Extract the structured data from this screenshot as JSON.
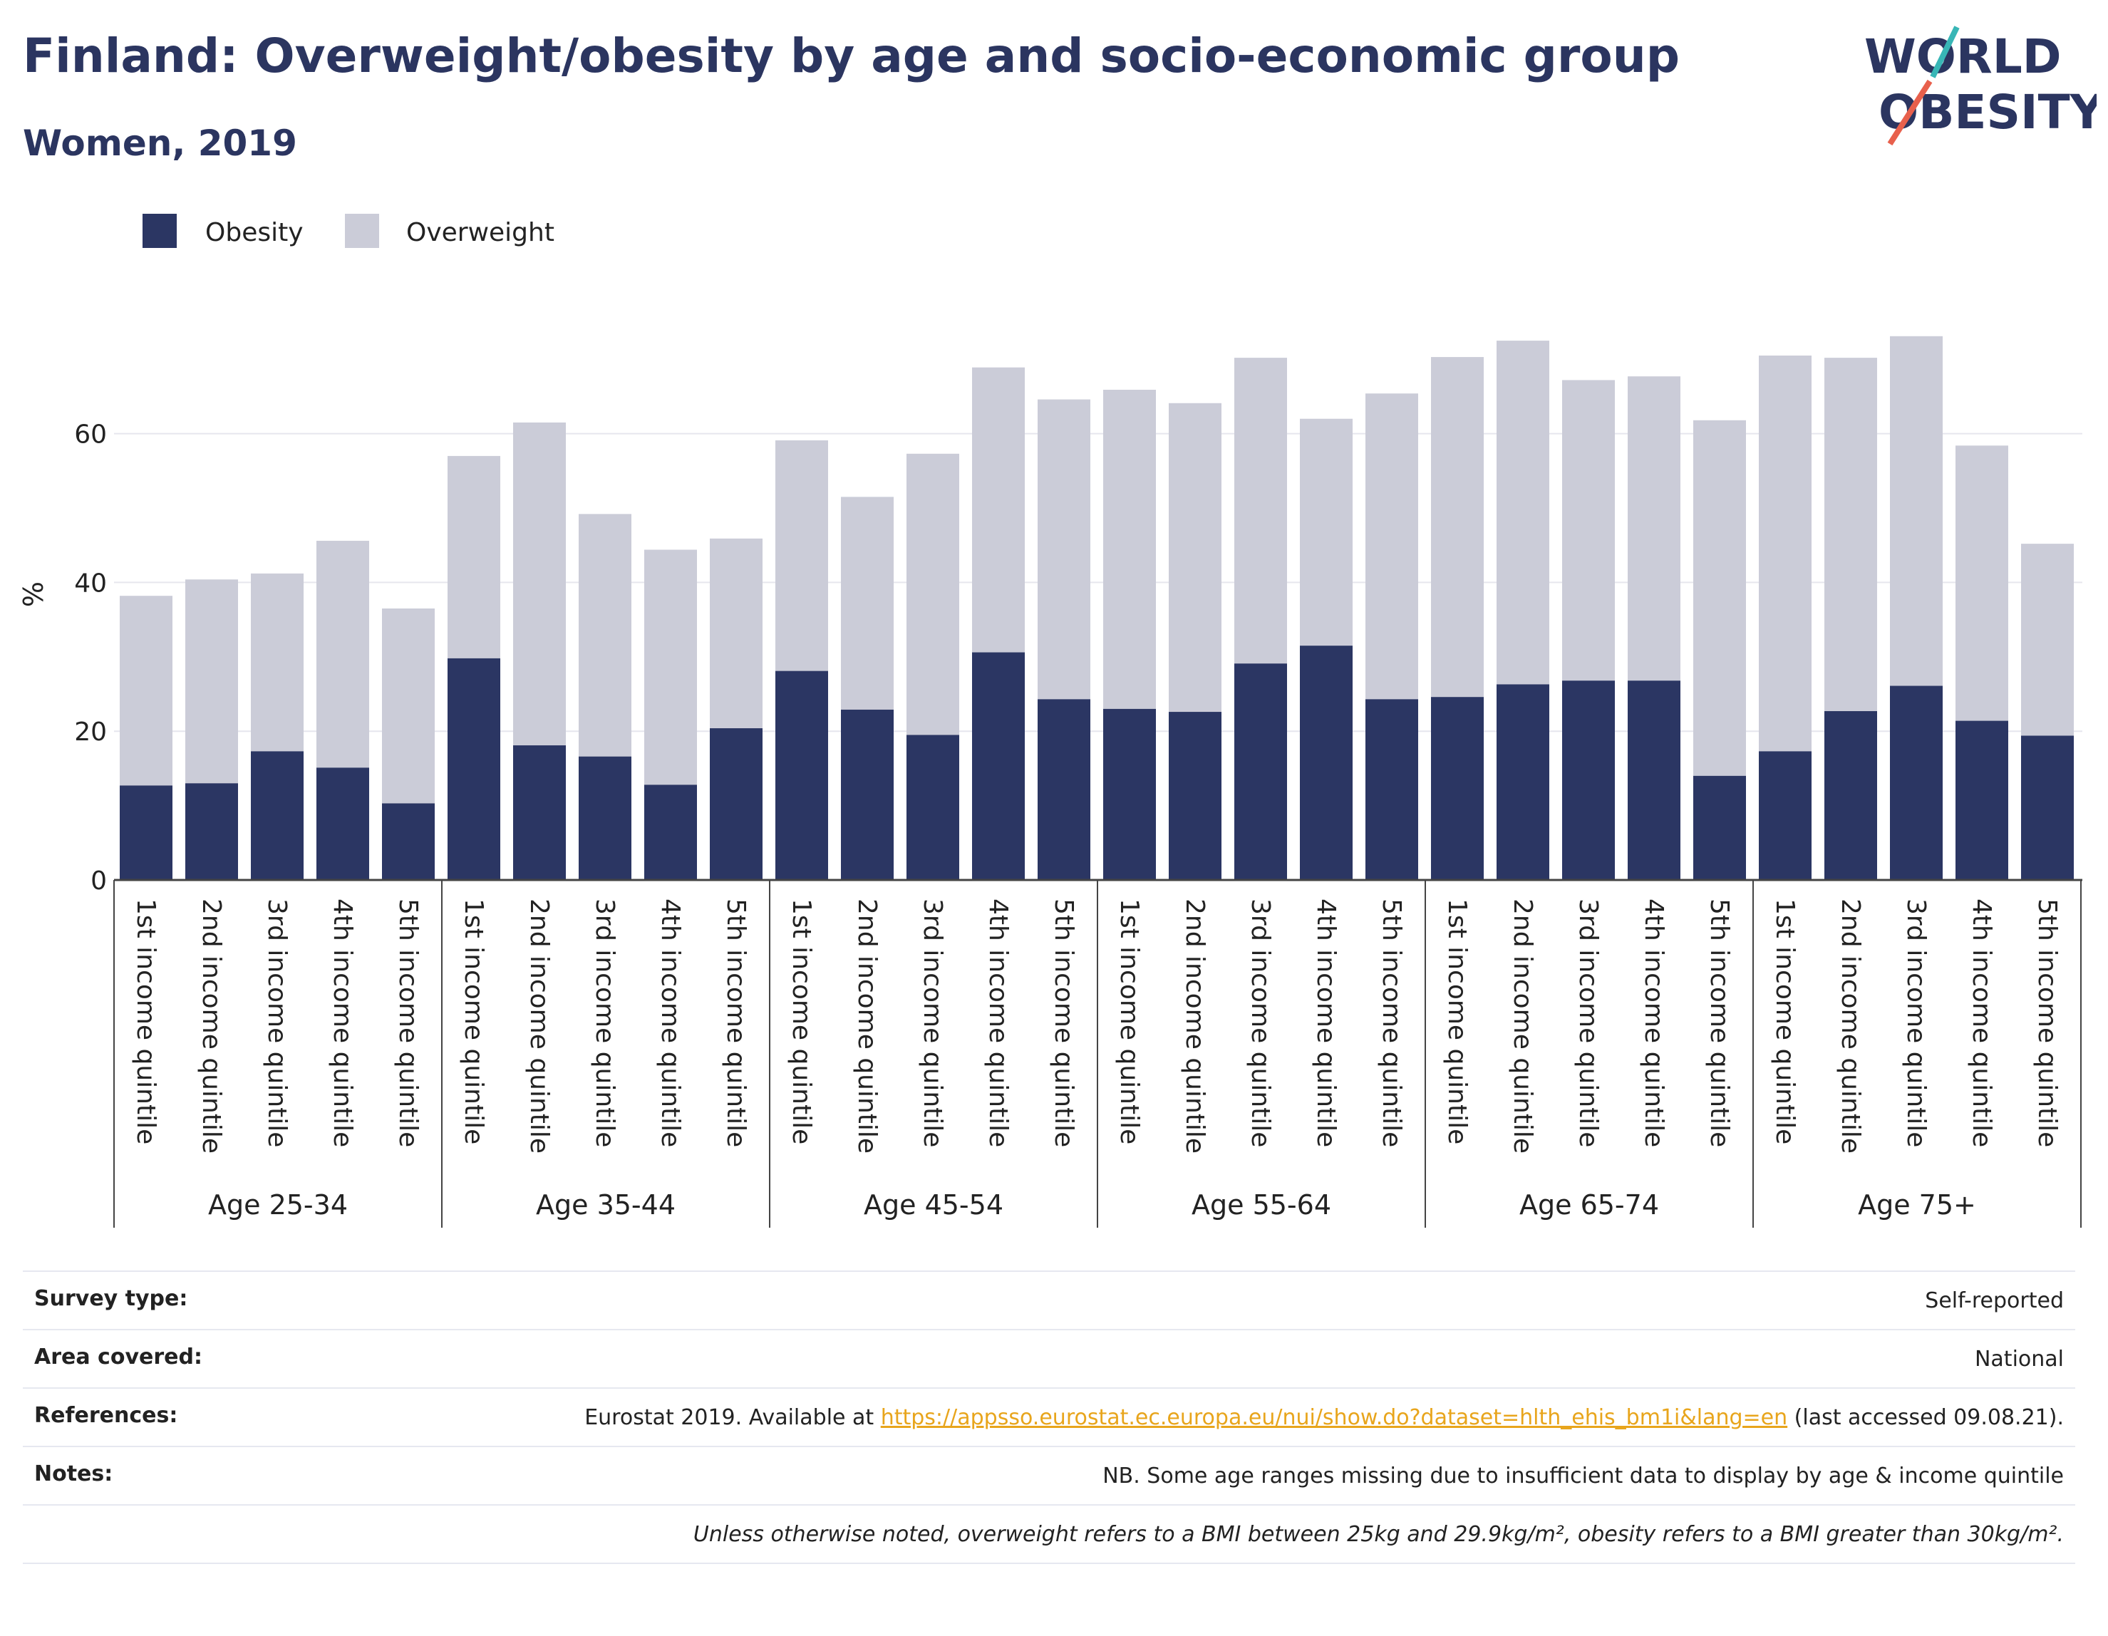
{
  "header": {
    "title": "Finland: Overweight/obesity by age and socio-economic group",
    "subtitle": "Women, 2019"
  },
  "logo": {
    "line1": "WORLD",
    "line2": "OBESITY",
    "colors": {
      "text": "#2b3560",
      "slash_red": "#e8604c",
      "slash_teal": "#38b6b6"
    }
  },
  "colors": {
    "obesity": "#2b3663",
    "overweight": "#cbccd8",
    "grid": "#e6e6ee",
    "axis": "#444444"
  },
  "chart_data": {
    "type": "bar",
    "stacked": true,
    "title": "Finland: Overweight/obesity by age and socio-economic group",
    "subtitle": "Women, 2019",
    "ylabel": "%",
    "ylim": [
      0,
      80
    ],
    "yticks": [
      0,
      20,
      40,
      60
    ],
    "grid": true,
    "legend_position": "top-left",
    "groups": [
      "Age 25-34",
      "Age 35-44",
      "Age 45-54",
      "Age 55-64",
      "Age 65-74",
      "Age 75+"
    ],
    "categories": [
      "1st income quintile",
      "2nd income quintile",
      "3rd income quintile",
      "4th income quintile",
      "5th income quintile"
    ],
    "series": [
      {
        "name": "Obesity",
        "color": "#2b3663",
        "values": [
          [
            12.7,
            13.0,
            17.3,
            15.1,
            10.3
          ],
          [
            29.8,
            18.1,
            16.6,
            12.8,
            20.4
          ],
          [
            28.1,
            22.9,
            19.5,
            30.6,
            24.3
          ],
          [
            23.0,
            22.6,
            29.1,
            31.5,
            24.3
          ],
          [
            24.6,
            26.3,
            26.8,
            26.8,
            14.0
          ],
          [
            17.3,
            22.7,
            26.1,
            21.4,
            19.4
          ]
        ]
      },
      {
        "name": "Overweight",
        "color": "#cbccd8",
        "values": [
          [
            25.5,
            27.4,
            23.9,
            30.5,
            26.2
          ],
          [
            27.2,
            43.4,
            32.6,
            31.6,
            25.5
          ],
          [
            31.0,
            28.6,
            37.8,
            38.3,
            40.3
          ],
          [
            42.9,
            41.5,
            41.1,
            30.5,
            41.1
          ],
          [
            45.7,
            46.2,
            40.4,
            40.9,
            47.8
          ],
          [
            53.2,
            47.5,
            47.0,
            37.0,
            25.8
          ]
        ]
      }
    ]
  },
  "info": {
    "survey_type_label": "Survey type:",
    "survey_type_value": "Self-reported",
    "area_label": "Area covered:",
    "area_value": "National",
    "references_label": "References:",
    "references_prefix": "Eurostat 2019. Available at ",
    "references_link": "https://appsso.eurostat.ec.europa.eu/nui/show.do?dataset=hlth_ehis_bm1i&lang=en",
    "references_suffix": " (last accessed 09.08.21).",
    "notes_label": "Notes:",
    "notes_value": "NB. Some age ranges missing due to insufficient data to display by age & income quintile",
    "footnote": "Unless otherwise noted, overweight refers to a BMI between 25kg and 29.9kg/m², obesity refers to a BMI greater than 30kg/m²."
  }
}
